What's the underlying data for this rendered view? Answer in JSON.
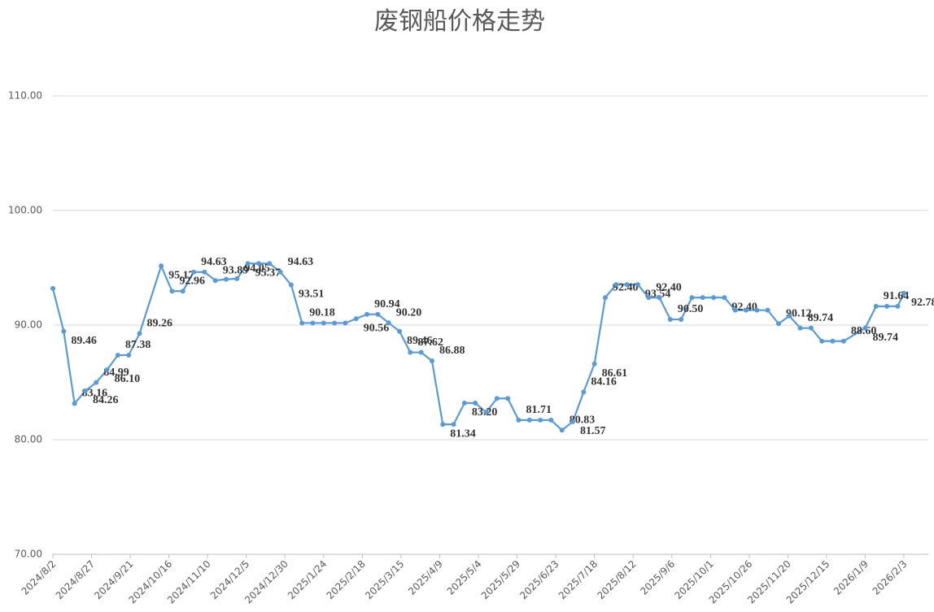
{
  "chart_data": {
    "type": "line",
    "title": "废钢船价格走势",
    "color": "#5b9bd5",
    "grid": true,
    "xlim": [
      "2024/8/2",
      "2026/2/3"
    ],
    "xticks": [
      "2024/8/2",
      "2024/8/27",
      "2024/9/21",
      "2024/10/16",
      "2024/11/10",
      "2024/12/5",
      "2024/12/30",
      "2025/1/24",
      "2025/2/18",
      "2025/3/15",
      "2025/4/9",
      "2025/5/4",
      "2025/5/29",
      "2025/6/23",
      "2025/7/18",
      "2025/8/12",
      "2025/9/6",
      "2025/10/1",
      "2025/10/26",
      "2025/11/20",
      "2025/12/15",
      "2026/1/9",
      "2026/2/3"
    ],
    "ylim": [
      70,
      110
    ],
    "yticks": [
      {
        "value": 70,
        "label": "70.00"
      },
      {
        "value": 80,
        "label": "80.00"
      },
      {
        "value": 90,
        "label": "90.00"
      },
      {
        "value": 100,
        "label": "100.00"
      },
      {
        "value": 110,
        "label": "110.00"
      }
    ],
    "x": [
      "2024/8/2",
      "2024/8/9",
      "2024/8/16",
      "2024/8/23",
      "2024/8/30",
      "2024/9/6",
      "2024/9/13",
      "2024/9/20",
      "2024/9/27",
      "2024/10/11",
      "2024/10/18",
      "2024/10/25",
      "2024/11/1",
      "2024/11/8",
      "2024/11/15",
      "2024/11/22",
      "2024/11/29",
      "2024/12/6",
      "2024/12/13",
      "2024/12/20",
      "2024/12/27",
      "2025/1/3",
      "2025/1/10",
      "2025/1/17",
      "2025/1/24",
      "2025/1/31",
      "2025/2/7",
      "2025/2/14",
      "2025/2/21",
      "2025/2/28",
      "2025/3/7",
      "2025/3/14",
      "2025/3/21",
      "2025/3/28",
      "2025/4/4",
      "2025/4/11",
      "2025/4/18",
      "2025/4/25",
      "2025/5/2",
      "2025/5/9",
      "2025/5/16",
      "2025/5/23",
      "2025/5/30",
      "2025/6/6",
      "2025/6/13",
      "2025/6/20",
      "2025/6/27",
      "2025/7/4",
      "2025/7/11",
      "2025/7/18",
      "2025/7/25",
      "2025/8/1",
      "2025/8/8",
      "2025/8/15",
      "2025/8/22",
      "2025/8/29",
      "2025/9/5",
      "2025/9/12",
      "2025/9/19",
      "2025/9/26",
      "2025/10/3",
      "2025/10/10",
      "2025/10/17",
      "2025/10/24",
      "2025/10/31",
      "2025/11/7",
      "2025/11/14",
      "2025/11/21",
      "2025/11/28",
      "2025/12/5",
      "2025/12/12",
      "2025/12/19",
      "2025/12/26",
      "2026/1/9",
      "2026/1/16",
      "2026/1/23",
      "2026/1/30",
      "2026/2/3"
    ],
    "values": [
      93.2,
      89.46,
      83.16,
      84.26,
      84.99,
      86.1,
      87.38,
      87.38,
      89.26,
      95.17,
      92.96,
      92.96,
      94.63,
      94.63,
      93.89,
      94.0,
      94.05,
      95.37,
      95.37,
      95.37,
      94.63,
      93.51,
      90.18,
      90.18,
      90.18,
      90.18,
      90.18,
      90.56,
      90.94,
      90.94,
      90.2,
      89.46,
      87.62,
      87.62,
      86.88,
      81.34,
      81.34,
      83.2,
      83.2,
      82.4,
      83.6,
      83.6,
      81.71,
      81.71,
      81.71,
      81.71,
      80.83,
      81.57,
      84.16,
      86.61,
      92.4,
      93.54,
      93.54,
      93.54,
      92.4,
      92.4,
      90.5,
      90.5,
      92.4,
      92.4,
      92.4,
      92.4,
      91.3,
      91.3,
      91.3,
      91.3,
      90.12,
      90.8,
      89.74,
      89.74,
      88.6,
      88.6,
      88.6,
      89.74,
      91.64,
      91.64,
      91.64,
      92.78
    ],
    "value_labels": [
      null,
      "89.46",
      "83.16",
      "84.26",
      "84.99",
      "86.10",
      "87.38",
      null,
      "89.26",
      "95.17",
      "92.96",
      null,
      "94.63",
      null,
      "93.89",
      null,
      "94.05",
      "95.37",
      null,
      null,
      "94.63",
      "93.51",
      "90.18",
      null,
      null,
      null,
      null,
      "90.56",
      "90.94",
      null,
      "90.20",
      "89.46",
      "87.62",
      null,
      "86.88",
      "81.34",
      null,
      "83.20",
      null,
      null,
      null,
      null,
      "81.71",
      null,
      null,
      null,
      "80.83",
      "81.57",
      "84.16",
      "86.61",
      "92.40",
      null,
      null,
      "93.54",
      "92.40",
      null,
      "90.50",
      null,
      null,
      null,
      null,
      "92.40",
      null,
      null,
      null,
      null,
      "90.12",
      null,
      "89.74",
      null,
      null,
      null,
      "88.60",
      "89.74",
      "91.64",
      null,
      null,
      "92.78"
    ]
  }
}
